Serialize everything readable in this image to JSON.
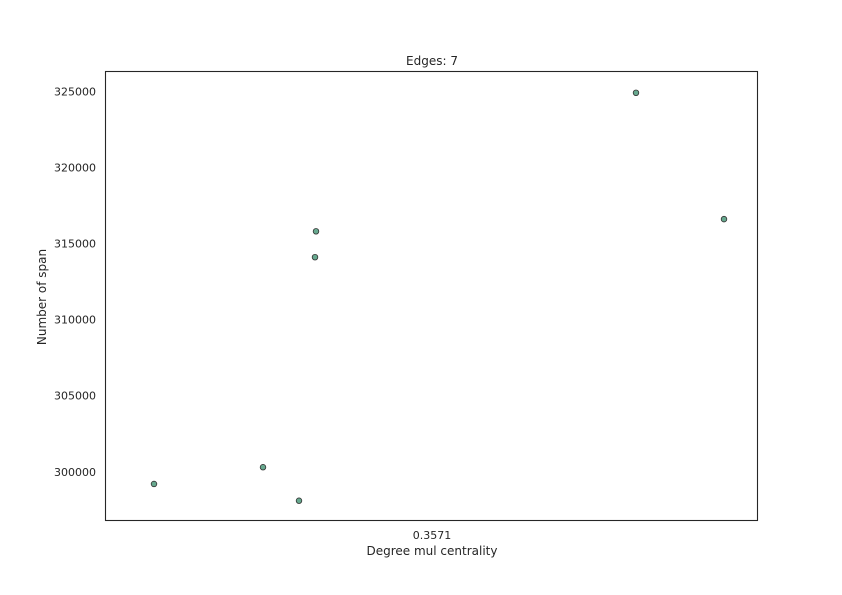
{
  "chart_data": {
    "type": "scatter",
    "title": "Edges: 7",
    "xlabel": "Degree mul centrality",
    "ylabel": "Number of span",
    "x_tick_labels": [
      "0.3571"
    ],
    "y_ticks": [
      300000,
      305000,
      310000,
      315000,
      320000,
      325000
    ],
    "y_tick_labels": [
      "300000",
      "305000",
      "310000",
      "315000",
      "320000",
      "325000"
    ],
    "ylim": [
      296800,
      326300
    ],
    "grid": false,
    "marker_color": "#4c9a7b",
    "marker_edge_color": "#333333",
    "points": [
      {
        "y": 299200
      },
      {
        "y": 300300
      },
      {
        "y": 298100
      },
      {
        "y": 314100
      },
      {
        "y": 315800
      },
      {
        "y": 324900
      },
      {
        "y": 316600
      }
    ]
  }
}
